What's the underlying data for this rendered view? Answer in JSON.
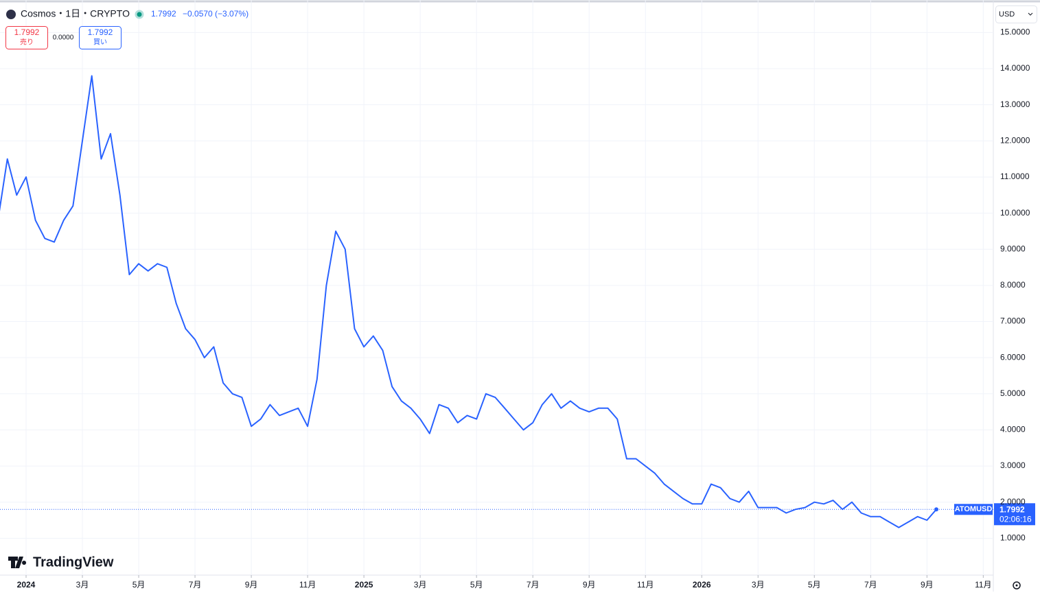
{
  "header": {
    "symbol": "Cosmos・1日・CRYPTO",
    "change": "−0.0570 (−3.07%)",
    "sell_label": "売り",
    "buy_label": "買い",
    "spread": "0.0000",
    "currency": "USD",
    "ticker": "ATOMUSD",
    "countdown": "02:06:16",
    "brand": "TradingView"
  },
  "chart_data": {
    "type": "line",
    "color": "#2962ff",
    "grid": true,
    "categories": [
      null,
      null,
      null,
      "2024",
      null,
      null,
      null,
      null,
      null,
      "3月",
      null,
      null,
      null,
      null,
      null,
      "5月",
      null,
      null,
      null,
      null,
      null,
      "7月",
      null,
      null,
      null,
      null,
      null,
      "9月",
      null,
      null,
      null,
      null,
      null,
      "11月",
      null,
      null,
      null,
      null,
      null,
      "2025",
      null,
      null,
      null,
      null,
      null,
      "3月",
      null,
      null,
      null,
      null,
      null,
      "5月",
      null,
      null,
      null,
      null,
      null,
      "7月",
      null,
      null,
      null,
      null,
      null,
      "9月",
      null,
      null,
      null,
      null,
      null,
      "11月",
      null,
      null,
      null,
      null,
      null,
      "2026",
      null,
      null,
      null,
      null,
      null,
      "3月",
      null,
      null,
      null,
      null,
      null,
      "5月",
      null,
      null,
      null,
      null,
      null,
      "7月",
      null,
      null,
      null,
      null,
      null,
      "9月",
      null,
      null,
      null,
      null,
      null,
      "11月",
      null
    ],
    "values": [
      9.8,
      11.5,
      10.5,
      11,
      9.8,
      9.3,
      9.2,
      9.8,
      10.2,
      12,
      13.8,
      11.5,
      12.2,
      10.5,
      8.3,
      8.6,
      8.4,
      8.6,
      8.5,
      7.5,
      6.8,
      6.5,
      6.0,
      6.3,
      5.3,
      5.0,
      4.9,
      4.1,
      4.3,
      4.7,
      4.4,
      4.5,
      4.6,
      4.1,
      5.4,
      8.0,
      9.5,
      9.0,
      6.8,
      6.3,
      6.6,
      6.2,
      5.2,
      4.8,
      4.6,
      4.3,
      3.9,
      4.7,
      4.6,
      4.2,
      4.4,
      4.3,
      5.0,
      4.9,
      4.6,
      4.3,
      4.0,
      4.2,
      4.7,
      5.0,
      4.6,
      4.8,
      4.6,
      4.5,
      4.6,
      4.6,
      4.3,
      3.2,
      3.2,
      3.0,
      2.8,
      2.5,
      2.3,
      2.1,
      1.95,
      1.95,
      2.5,
      2.4,
      2.1,
      2.0,
      2.3,
      1.85,
      1.85,
      1.85,
      1.7,
      1.8,
      1.85,
      2.0,
      1.95,
      2.05,
      1.8,
      2.0,
      1.7,
      1.6,
      1.6,
      1.45,
      1.3,
      1.45,
      1.6,
      1.5,
      1.7992,
      null,
      null,
      null,
      null,
      null,
      null
    ],
    "ylim": [
      0,
      15.9
    ],
    "yticks": [
      {
        "value": 1,
        "label": "1.0000"
      },
      {
        "value": 2,
        "label": "2.0000"
      },
      {
        "value": 3,
        "label": "3.0000"
      },
      {
        "value": 4,
        "label": "4.0000"
      },
      {
        "value": 5,
        "label": "5.0000"
      },
      {
        "value": 6,
        "label": "6.0000"
      },
      {
        "value": 7,
        "label": "7.0000"
      },
      {
        "value": 8,
        "label": "8.0000"
      },
      {
        "value": 9,
        "label": "9.0000"
      },
      {
        "value": 10,
        "label": "10.0000"
      },
      {
        "value": 11,
        "label": "11.0000"
      },
      {
        "value": 12,
        "label": "12.0000"
      },
      {
        "value": 13,
        "label": "13.0000"
      },
      {
        "value": 14,
        "label": "14.0000"
      },
      {
        "value": 15,
        "label": "15.0000"
      }
    ]
  }
}
